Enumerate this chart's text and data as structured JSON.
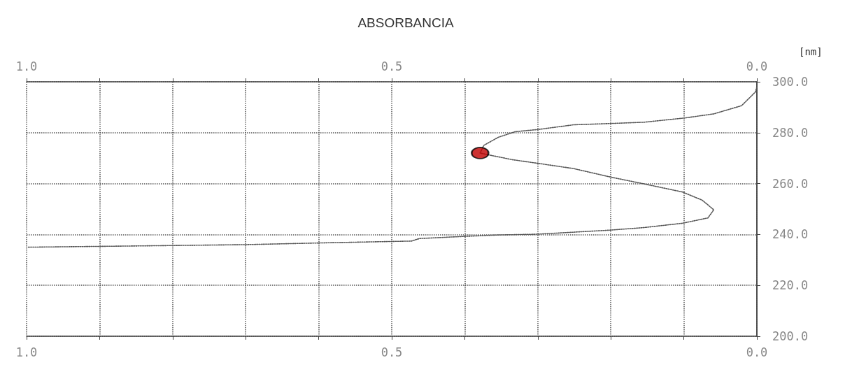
{
  "chart_data": {
    "type": "line",
    "title": "ABSORBANCIA",
    "ylabel": "[nm]",
    "xlim": [
      1.0,
      0.0
    ],
    "x2lim": [
      1.0,
      0.0
    ],
    "xticks": [
      {
        "value": 1.0,
        "label": "1.0"
      },
      {
        "value": 0.9,
        "label": null
      },
      {
        "value": 0.8,
        "label": null
      },
      {
        "value": 0.7,
        "label": null
      },
      {
        "value": 0.6,
        "label": null
      },
      {
        "value": 0.5,
        "label": "0.5"
      },
      {
        "value": 0.4,
        "label": null
      },
      {
        "value": 0.3,
        "label": null
      },
      {
        "value": 0.2,
        "label": null
      },
      {
        "value": 0.1,
        "label": null
      },
      {
        "value": 0.0,
        "label": "0.0"
      }
    ],
    "x2ticks": [
      {
        "value": 1.0,
        "label": "1.0"
      },
      {
        "value": 0.9,
        "label": null
      },
      {
        "value": 0.8,
        "label": null
      },
      {
        "value": 0.7,
        "label": null
      },
      {
        "value": 0.6,
        "label": null
      },
      {
        "value": 0.5,
        "label": "0.5"
      },
      {
        "value": 0.4,
        "label": null
      },
      {
        "value": 0.3,
        "label": null
      },
      {
        "value": 0.2,
        "label": null
      },
      {
        "value": 0.1,
        "label": null
      },
      {
        "value": 0.0,
        "label": "0.0"
      }
    ],
    "ylim": [
      200,
      300
    ],
    "yticks": [
      {
        "value": 200,
        "label": "200.0"
      },
      {
        "value": 220,
        "label": "220.0"
      },
      {
        "value": 240,
        "label": "240.0"
      },
      {
        "value": 260,
        "label": "260.0"
      },
      {
        "value": 280,
        "label": "280.0"
      },
      {
        "value": 300,
        "label": "300.0"
      }
    ],
    "grid": true,
    "line_style": "dotted",
    "marker": "none",
    "series": [
      {
        "color": "#555555",
        "x": [
          0.0,
          0.002,
          0.021,
          0.059,
          0.098,
          0.155,
          0.201,
          0.251,
          0.301,
          0.331,
          0.354,
          0.374,
          0.379,
          0.366,
          0.335,
          0.301,
          0.251,
          0.201,
          0.155,
          0.102,
          0.075,
          0.059,
          0.067,
          0.102,
          0.155,
          0.201,
          0.251,
          0.301,
          0.354,
          0.404,
          0.462,
          0.473,
          0.577,
          0.7,
          0.845,
          0.998
        ],
        "values": [
          298,
          296,
          290.6,
          287.4,
          285.8,
          284.1,
          283.6,
          283.1,
          281.2,
          280.4,
          278.2,
          275,
          272,
          271.2,
          269.4,
          268,
          265.9,
          262.6,
          259.9,
          256.7,
          253.5,
          249.7,
          246.5,
          244.4,
          242.7,
          241.7,
          240.9,
          240.1,
          239.8,
          239.2,
          238.4,
          237.4,
          236.8,
          236,
          235.5,
          235
        ]
      },
      {
        "type": "scatter",
        "color": "#c00000",
        "marker": "circle",
        "x": [
          0.379
        ],
        "values": [
          272
        ]
      }
    ]
  }
}
